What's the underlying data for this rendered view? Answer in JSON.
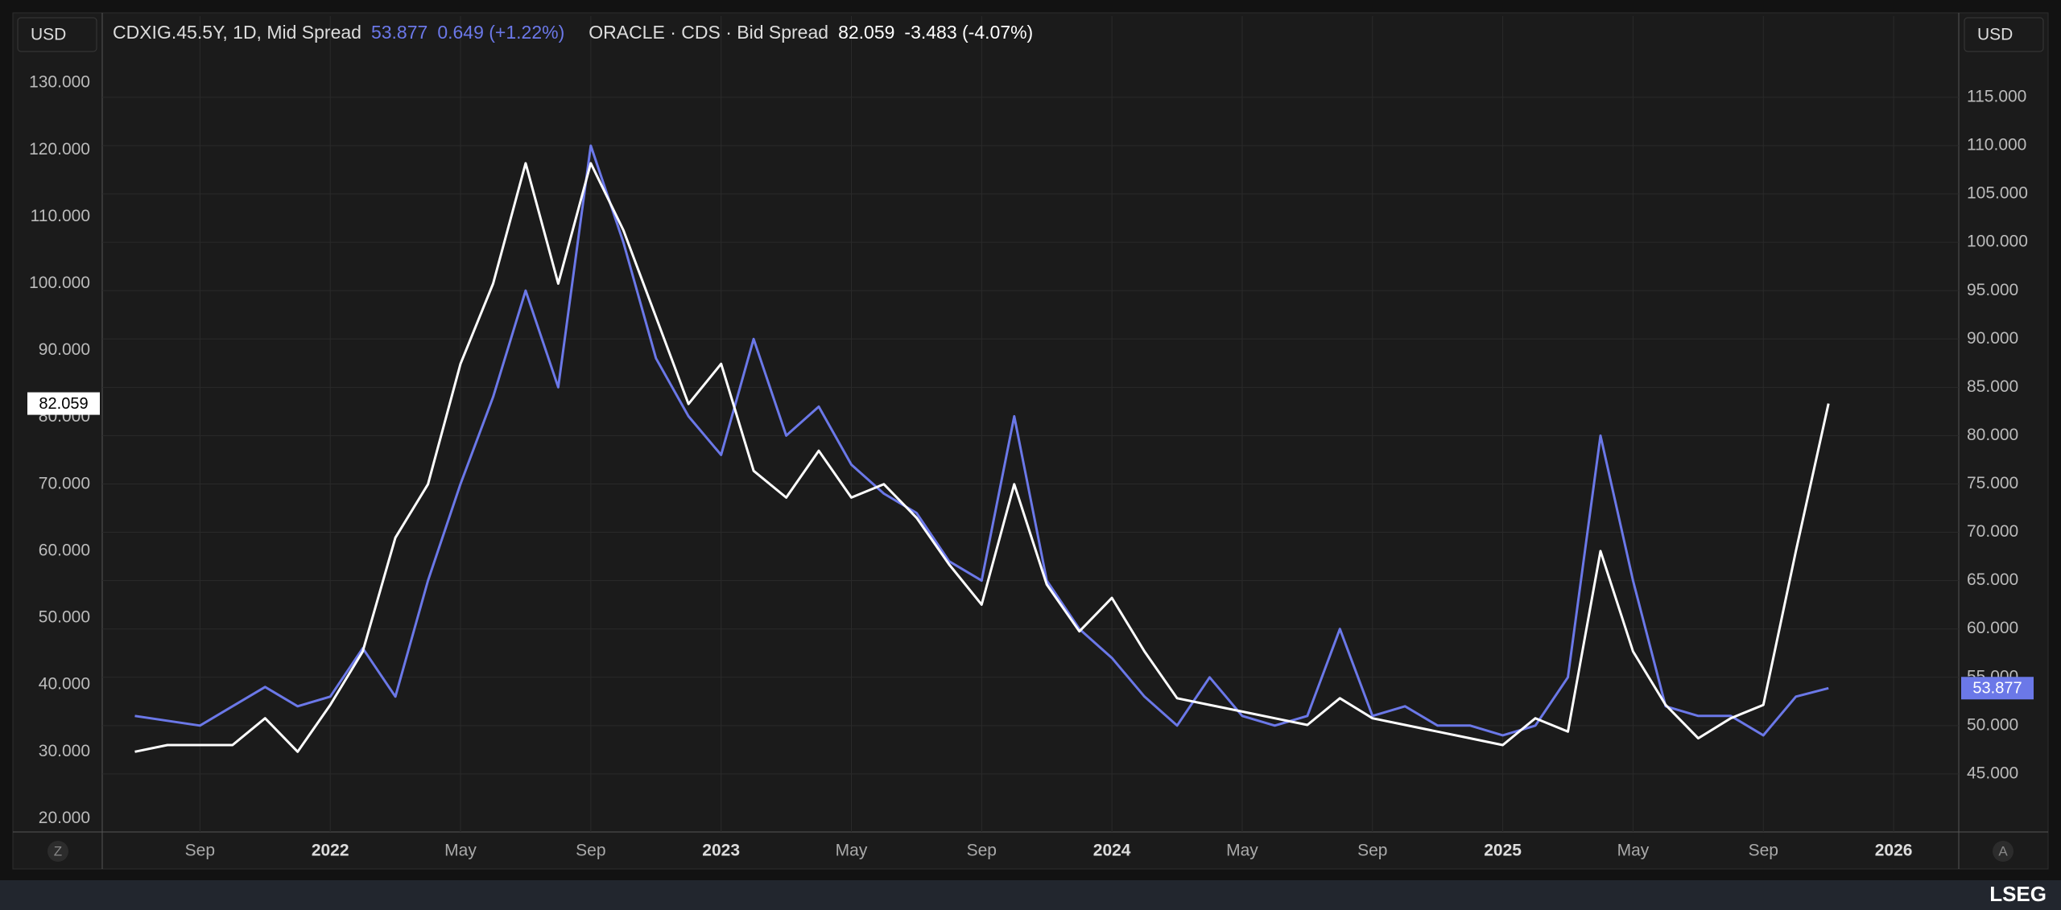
{
  "chart_data": {
    "type": "line",
    "x": [
      "2021-07",
      "2021-08",
      "2021-09",
      "2021-10",
      "2021-11",
      "2021-12",
      "2022-01",
      "2022-02",
      "2022-03",
      "2022-04",
      "2022-05",
      "2022-06",
      "2022-07",
      "2022-08",
      "2022-09",
      "2022-10",
      "2022-11",
      "2022-12",
      "2023-01",
      "2023-02",
      "2023-03",
      "2023-04",
      "2023-05",
      "2023-06",
      "2023-07",
      "2023-08",
      "2023-09",
      "2023-10",
      "2023-11",
      "2023-12",
      "2024-01",
      "2024-02",
      "2024-03",
      "2024-04",
      "2024-05",
      "2024-06",
      "2024-07",
      "2024-08",
      "2024-09",
      "2024-10",
      "2024-11",
      "2024-12",
      "2025-01",
      "2025-02",
      "2025-03",
      "2025-04",
      "2025-05",
      "2025-06",
      "2025-07",
      "2025-08",
      "2025-09",
      "2025-10",
      "2025-11"
    ],
    "series": [
      {
        "name": "CDXIG.45.5Y, 1D, Mid Spread",
        "color": "#6b78e8",
        "axis": "y2",
        "change": "0.649 (+1.22%)",
        "values": [
          51,
          50.5,
          50,
          52,
          54,
          52,
          53,
          58,
          53,
          65,
          75,
          84,
          95,
          85,
          110,
          100,
          88,
          82,
          78,
          90,
          80,
          83,
          77,
          74,
          72,
          67,
          65,
          82,
          65,
          60,
          57,
          53,
          50,
          55,
          51,
          50,
          51,
          60,
          51,
          52,
          50,
          50,
          49,
          50,
          55,
          80,
          65,
          52,
          51,
          51,
          49,
          53,
          53.877
        ]
      },
      {
        "name": "ORACLE · CDS · Bid Spread",
        "color": "#ffffff",
        "axis": "y",
        "change": "-3.483 (-4.07%)",
        "values": [
          30,
          31,
          31,
          31,
          35,
          30,
          37,
          45,
          62,
          70,
          88,
          100,
          118,
          100,
          118,
          108,
          95,
          82,
          88,
          72,
          68,
          75,
          68,
          70,
          65,
          58,
          52,
          70,
          55,
          48,
          53,
          45,
          38,
          37,
          36,
          35,
          34,
          38,
          35,
          34,
          33,
          32,
          31,
          35,
          33,
          60,
          45,
          37,
          32,
          35,
          37,
          60,
          82.059
        ]
      }
    ],
    "currency_left": "USD",
    "currency_right": "USD",
    "ylim": [
      18,
      140
    ],
    "yticks": [
      {
        "value": 20,
        "label": "20.000"
      },
      {
        "value": 30,
        "label": "30.000"
      },
      {
        "value": 40,
        "label": "40.000"
      },
      {
        "value": 50,
        "label": "50.000"
      },
      {
        "value": 60,
        "label": "60.000"
      },
      {
        "value": 70,
        "label": "70.000"
      },
      {
        "value": 80,
        "label": "80.000"
      },
      {
        "value": 90,
        "label": "90.000"
      },
      {
        "value": 100,
        "label": "100.000"
      },
      {
        "value": 110,
        "label": "110.000"
      },
      {
        "value": 120,
        "label": "120.000"
      },
      {
        "value": 130,
        "label": "130.000"
      }
    ],
    "y2lim": [
      39,
      123.4
    ],
    "y2ticks": [
      {
        "value": 45,
        "label": "45.000"
      },
      {
        "value": 50,
        "label": "50.000"
      },
      {
        "value": 55,
        "label": "55.000"
      },
      {
        "value": 60,
        "label": "60.000"
      },
      {
        "value": 65,
        "label": "65.000"
      },
      {
        "value": 70,
        "label": "70.000"
      },
      {
        "value": 75,
        "label": "75.000"
      },
      {
        "value": 80,
        "label": "80.000"
      },
      {
        "value": 85,
        "label": "85.000"
      },
      {
        "value": 90,
        "label": "90.000"
      },
      {
        "value": 95,
        "label": "95.000"
      },
      {
        "value": 100,
        "label": "100.000"
      },
      {
        "value": 105,
        "label": "105.000"
      },
      {
        "value": 110,
        "label": "110.000"
      },
      {
        "value": 115,
        "label": "115.000"
      }
    ],
    "xlim": [
      "2021-06",
      "2026-03"
    ],
    "xticks": [
      {
        "value": "2021-09",
        "label": "Sep"
      },
      {
        "value": "2022-01",
        "label": "2022"
      },
      {
        "value": "2022-05",
        "label": "May"
      },
      {
        "value": "2022-09",
        "label": "Sep"
      },
      {
        "value": "2023-01",
        "label": "2023"
      },
      {
        "value": "2023-05",
        "label": "May"
      },
      {
        "value": "2023-09",
        "label": "Sep"
      },
      {
        "value": "2024-01",
        "label": "2024"
      },
      {
        "value": "2024-05",
        "label": "May"
      },
      {
        "value": "2024-09",
        "label": "Sep"
      },
      {
        "value": "2025-01",
        "label": "2025"
      },
      {
        "value": "2025-05",
        "label": "May"
      },
      {
        "value": "2025-09",
        "label": "Sep"
      },
      {
        "value": "2026-01",
        "label": "2026"
      }
    ],
    "grid": true,
    "left_button": "Z",
    "right_button": "A",
    "brand": "LSEG"
  }
}
